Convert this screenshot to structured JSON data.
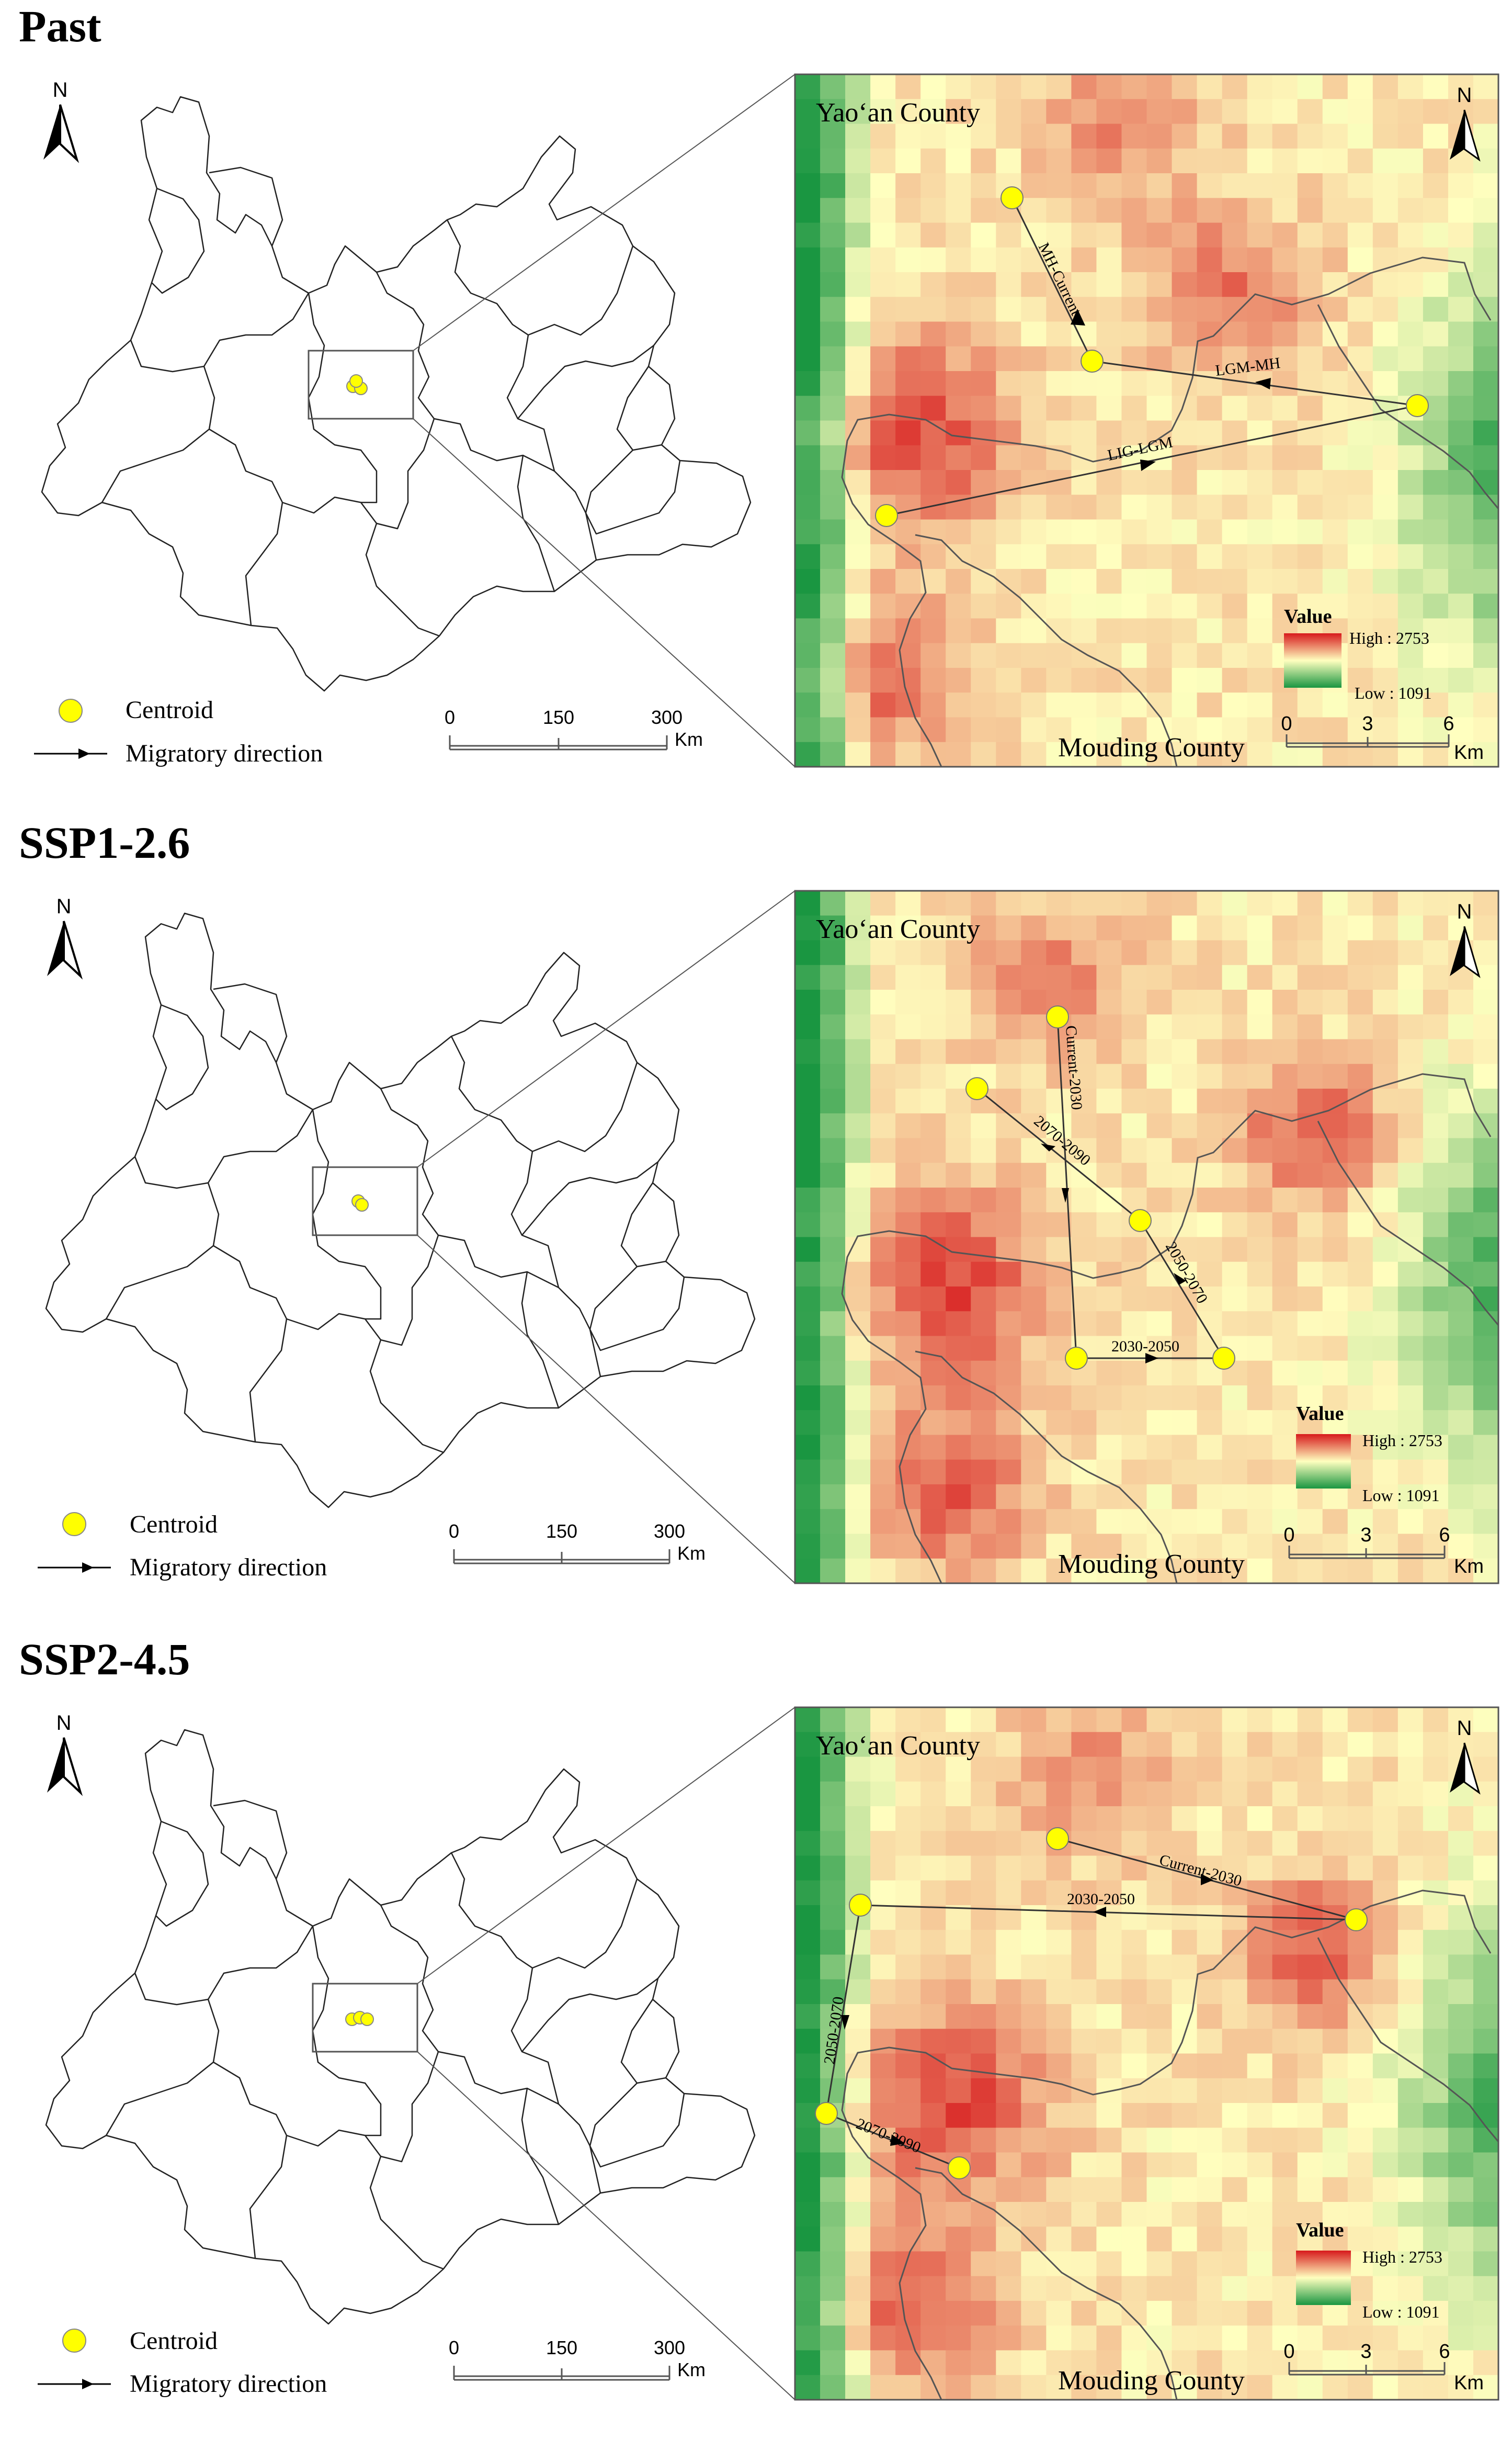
{
  "panels": [
    {
      "title": "Past",
      "route_labels": [
        "MH-Current",
        "LGM-MH",
        "LIG-LGM"
      ]
    },
    {
      "title": "SSP1-2.6",
      "route_labels": [
        "Current-2030",
        "2070-2090",
        "2050-2070",
        "2030-2050"
      ]
    },
    {
      "title": "SSP2-4.5",
      "route_labels": [
        "Current-2030",
        "2030-2050",
        "2050-2070",
        "2070-2090"
      ]
    }
  ],
  "common": {
    "county_top": "Yao‘an County",
    "county_bottom": "Mouding County",
    "north_label": "N",
    "legend_value_title": "Value",
    "legend_high": "High : 2753",
    "legend_low": "Low : 1091",
    "legend_centroid": "Centroid",
    "legend_migratory": "Migratory direction",
    "overview_scale_ticks": [
      "0",
      "150",
      "300"
    ],
    "inset_scale_ticks": [
      "0",
      "3",
      "6"
    ],
    "scale_unit": "Km"
  },
  "colors": {
    "centroid_fill": "#ffff00",
    "high": "#d7191c",
    "mid": "#ffffbf",
    "low": "#1a9641"
  }
}
